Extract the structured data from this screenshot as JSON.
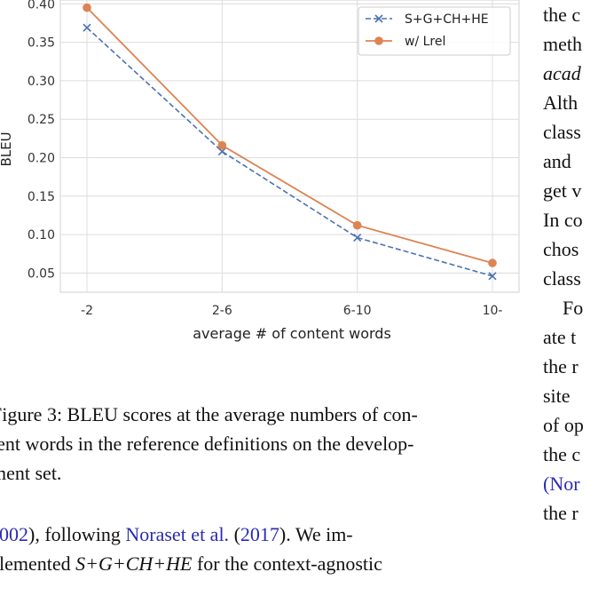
{
  "chart_data": {
    "type": "line",
    "categories": [
      "-2",
      "2-6",
      "6-10",
      "10-"
    ],
    "xlabel": "average # of content words",
    "ylabel": "BLEU",
    "ylim": [
      0.025,
      0.405
    ],
    "yticks": [
      "0.05",
      "0.10",
      "0.15",
      "0.20",
      "0.25",
      "0.30",
      "0.35",
      "0.40"
    ],
    "ytick_values": [
      0.05,
      0.1,
      0.15,
      0.2,
      0.25,
      0.3,
      0.35,
      0.4
    ],
    "grid": true,
    "legend_position": "top-right",
    "series": [
      {
        "name": "S+G+CH+HE",
        "values": [
          0.369,
          0.208,
          0.096,
          0.046
        ],
        "color": "#4c72b0",
        "style": "dashed",
        "marker": "x"
      },
      {
        "name": "w/ Lrel",
        "values": [
          0.395,
          0.216,
          0.112,
          0.063
        ],
        "color": "#dd8452",
        "style": "solid",
        "marker": "o"
      }
    ]
  },
  "caption": {
    "lines": [
      "Figure 3: BLEU scores at the average numbers of con-",
      "tent words in the reference definitions on the develop-",
      "ment set."
    ]
  },
  "body_left": {
    "line1": {
      "cite_a": "2002",
      "mid": "), following ",
      "cite_b": "Noraset et al.",
      "paren_open": " (",
      "cite_c": "2017",
      "tail": ").   We im-"
    },
    "line2": {
      "pre": "plemented ",
      "math": "S+G+CH+HE",
      "post": " for the context-agnostic"
    }
  },
  "right_col": {
    "lines": [
      "the c",
      "meth",
      "acad",
      "Alth",
      "class",
      "and",
      "get v",
      "In co",
      "chos",
      "class",
      "Fo",
      "ate t",
      "the r",
      "site",
      "of op",
      "the c",
      "(Nor",
      "the r"
    ]
  }
}
